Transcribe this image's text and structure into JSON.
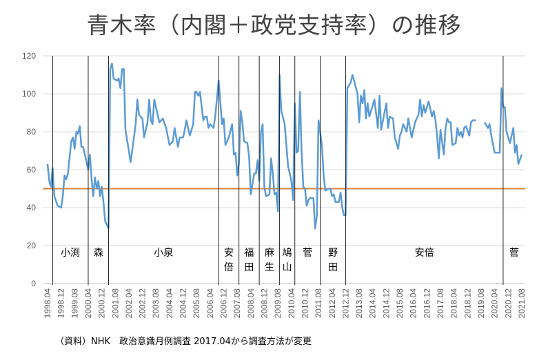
{
  "title": "青木率（内閣＋政党支持率）の推移",
  "note": "（資料）NHK　政治意識月例調査  2017.04から調査方法が変更",
  "colors": {
    "series": "#5b9bd5",
    "threshold": "#d9823b",
    "grid": "#d9d9d9",
    "pm_line": "#222222"
  },
  "chart_data": {
    "type": "line",
    "title": "青木率（内閣＋政党支持率）の推移",
    "xlabel": "",
    "ylabel": "",
    "ylim": [
      0,
      120
    ],
    "yticks": [
      0,
      20,
      40,
      60,
      80,
      100,
      120
    ],
    "x_unit": "months since 1998.04",
    "xlim": [
      0,
      280
    ],
    "xtick_labels": [
      "1998.04",
      "1998.12",
      "1999.08",
      "2000.04",
      "2000.12",
      "2001.08",
      "2002.04",
      "2002.12",
      "2003.08",
      "2004.04",
      "2004.12",
      "2005.08",
      "2006.04",
      "2006.12",
      "2007.08",
      "2008.04",
      "2008.12",
      "2009.08",
      "2010.04",
      "2010.12",
      "2011.08",
      "2012.04",
      "2012.12",
      "2013.08",
      "2014.04",
      "2014.12",
      "2015.08",
      "2016.04",
      "2016.12",
      "2017.08",
      "2018.04",
      "2018.12",
      "2019.08",
      "2020.04",
      "2020.12",
      "2021.08"
    ],
    "xtick_step_months": 8,
    "grid": true,
    "threshold": 50,
    "series": [
      {
        "name": "青木率",
        "x": [
          0,
          1,
          2,
          3,
          4,
          6,
          8,
          9,
          10,
          11,
          12,
          14,
          15,
          16,
          17,
          18,
          19,
          20,
          21,
          22,
          24,
          25,
          26,
          27,
          28,
          29,
          30,
          31,
          32,
          33,
          34,
          36,
          37,
          38,
          39,
          41,
          42,
          43,
          44,
          45,
          46,
          48,
          49,
          50,
          52,
          53,
          54,
          56,
          57,
          59,
          60,
          61,
          62,
          63,
          65,
          66,
          67,
          68,
          70,
          72,
          74,
          75,
          76,
          77,
          78,
          80,
          81,
          82,
          83,
          84,
          86,
          87,
          88,
          89,
          90,
          92,
          93,
          94,
          95,
          96,
          98,
          99,
          101,
          103,
          104,
          105,
          107,
          109,
          110,
          111,
          112,
          113,
          114,
          115,
          116,
          118,
          119,
          120,
          122,
          123,
          124,
          125,
          126,
          127,
          128,
          129,
          131,
          132,
          133,
          134,
          135,
          136,
          137,
          138,
          140,
          142,
          144,
          145,
          146,
          147,
          148,
          149,
          150,
          151,
          152,
          153,
          154,
          155,
          157,
          158,
          159,
          160,
          162,
          163,
          164,
          166,
          167,
          168,
          169,
          170,
          172,
          173,
          174,
          175,
          176,
          177,
          179,
          180,
          181,
          183,
          184,
          185,
          186,
          187,
          188,
          189,
          190,
          191,
          193,
          195,
          196,
          197,
          200,
          201,
          202,
          204,
          205,
          207,
          208,
          209,
          210,
          212,
          213,
          215,
          217,
          219,
          220,
          221,
          222,
          223,
          225,
          227,
          228,
          229,
          230,
          231,
          232,
          234,
          235,
          236,
          237,
          238,
          239,
          241,
          242,
          243,
          244,
          245,
          246,
          247,
          249,
          250,
          251,
          253,
          255,
          258,
          260,
          261,
          262,
          264,
          266,
          267,
          268,
          269,
          270,
          271,
          273,
          275,
          276,
          277,
          278,
          280
        ],
        "values": [
          63,
          54,
          51,
          61,
          46,
          41,
          40,
          46,
          57,
          55,
          58,
          75,
          77,
          71,
          80,
          79,
          83,
          72,
          72,
          68,
          60,
          68,
          55,
          46,
          56,
          50,
          54,
          46,
          51,
          43,
          33,
          29,
          113,
          116,
          108,
          107,
          108,
          103,
          113,
          113,
          81,
          70,
          64,
          70,
          84,
          97,
          89,
          87,
          77,
          85,
          97,
          86,
          84,
          97,
          89,
          85,
          86,
          87,
          82,
          73,
          75,
          82,
          77,
          72,
          77,
          77,
          81,
          86,
          82,
          78,
          84,
          101,
          101,
          99,
          101,
          86,
          88,
          88,
          82,
          84,
          82,
          88,
          107,
          84,
          87,
          73,
          77,
          84,
          68,
          69,
          57,
          63,
          91,
          85,
          75,
          74,
          67,
          47,
          58,
          58,
          65,
          54,
          80,
          84,
          51,
          46,
          47,
          66,
          58,
          47,
          48,
          38,
          110,
          91,
          84,
          62,
          54,
          44,
          95,
          69,
          70,
          101,
          70,
          51,
          50,
          41,
          44,
          45,
          45,
          29,
          36,
          86,
          73,
          57,
          49,
          50,
          50,
          46,
          47,
          43,
          43,
          48,
          40,
          36,
          36,
          103,
          106,
          110,
          107,
          100,
          85,
          99,
          95,
          102,
          87,
          95,
          88,
          91,
          97,
          82,
          99,
          81,
          95,
          82,
          88,
          87,
          77,
          71,
          78,
          80,
          84,
          80,
          87,
          77,
          85,
          89,
          97,
          88,
          94,
          90,
          96,
          88,
          91,
          86,
          78,
          66,
          81,
          68,
          82,
          87,
          85,
          85,
          73,
          74,
          82,
          78,
          80,
          77,
          82,
          83,
          78,
          85,
          86,
          86,
          null,
          85,
          82,
          84,
          78,
          69,
          69,
          69,
          103,
          93,
          93,
          80,
          74,
          82,
          69,
          73,
          63,
          68
        ]
      }
    ],
    "pm_changes": [
      {
        "month": 3,
        "name": "小渕"
      },
      {
        "month": 24,
        "name": "森"
      },
      {
        "month": 36,
        "name": "小泉"
      },
      {
        "month": 101,
        "name": "安倍"
      },
      {
        "month": 113,
        "name": "福田"
      },
      {
        "month": 125,
        "name": "麻生"
      },
      {
        "month": 137,
        "name": "鳩山"
      },
      {
        "month": 146,
        "name": "菅"
      },
      {
        "month": 161,
        "name": "野田"
      },
      {
        "month": 176,
        "name": "安倍"
      },
      {
        "month": 269,
        "name": "菅"
      }
    ]
  }
}
